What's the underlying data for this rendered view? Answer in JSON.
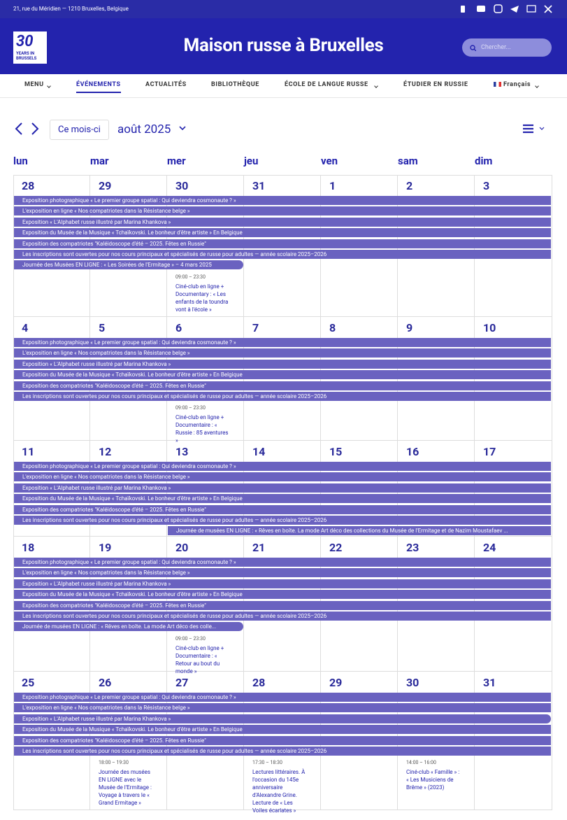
{
  "topbar": {
    "address": "21, rue du Méridien — 1210 Bruxelles, Belgique"
  },
  "header": {
    "logo": {
      "number": "30",
      "text": "YEARS IN BRUSSELS"
    },
    "title": "Maison russe à Bruxelles",
    "search_placeholder": "Chercher..."
  },
  "nav": {
    "items": [
      "MENU",
      "ÉVÉNEMENTS",
      "ACTUALITÉS",
      "BIBLIOTHÈQUE",
      "ÉCOLE DE LANGUE RUSSE",
      "ÉTUDIER EN RUSSIE",
      "Français"
    ]
  },
  "calendar": {
    "today_button": "Ce mois-ci",
    "month": "août 2025",
    "weekdays": [
      "lun",
      "mar",
      "mer",
      "jeu",
      "ven",
      "sam",
      "dim"
    ],
    "ongoing": [
      "Exposition photographique « Le premier groupe spatial : Qui deviendra cosmonaute ? »",
      "L'exposition en ligne « Nos compatriotes dans la Résistance belge »",
      "Exposition « L'Alphabet russe illustré par Marina Khankova »",
      "Exposition du Musée de la Musique « Tchaïkovski. Le bonheur d'être artiste » En Belgique",
      "Exposition des compatriotes \"Kaléidoscope d'été – 2025. Fêtes en Russie\"",
      "Les inscriptions sont ouvertes pour nos cours principaux et spécialisés de russe pour adultes — année scolaire 2025–2026"
    ],
    "weeks": [
      {
        "days": [
          {
            "number": 28
          },
          {
            "number": 29
          },
          {
            "number": 30,
            "events": [
              {
                "time": "09:00 – 23:30",
                "title": "Ciné-club en ligne + Documentary : « Les enfants de la toundra vont à l'école »"
              }
            ]
          },
          {
            "number": 31
          },
          {
            "number": 1
          },
          {
            "number": 2
          },
          {
            "number": 3
          }
        ],
        "bars": [
          "Journée des Musées EN LIGNE : « Les Soirées de l'Ermitage » – 4 mars 2025"
        ]
      },
      {
        "days": [
          {
            "number": 4
          },
          {
            "number": 5
          },
          {
            "number": 6,
            "events": [
              {
                "time": "09:00 – 23:30",
                "title": "Ciné-club en ligne + Documentaire : « Russie : 85 aventures »"
              }
            ]
          },
          {
            "number": 7
          },
          {
            "number": 8
          },
          {
            "number": 9
          },
          {
            "number": 10
          }
        ]
      },
      {
        "days": [
          {
            "number": 11
          },
          {
            "number": 12
          },
          {
            "number": 13
          },
          {
            "number": 14
          },
          {
            "number": 15
          },
          {
            "number": 16
          },
          {
            "number": 17
          }
        ],
        "bars": [
          "Journée de musées EN LIGNE : « Rêves en boîte. La mode Art déco des collections du Musée de l'Ermitage et de Nazim Moustafaev ..."
        ]
      },
      {
        "days": [
          {
            "number": 18
          },
          {
            "number": 19
          },
          {
            "number": 20,
            "events": [
              {
                "time": "09:00 – 23:30",
                "title": "Ciné-club en ligne + Documentaire : « Retour au bout du monde »"
              }
            ]
          },
          {
            "number": 21
          },
          {
            "number": 22
          },
          {
            "number": 23
          },
          {
            "number": 24
          }
        ],
        "bars": [
          "Journée de musées EN LIGNE : « Rêves en boîte. La mode Art déco des colle..."
        ]
      },
      {
        "days": [
          {
            "number": 25
          },
          {
            "number": 26,
            "events": [
              {
                "time": "18:00 – 19:30",
                "title": "Journée des musées EN LIGNE avec le Musée de l'Ermitage : Voyage à travers le « Grand Ermitage »"
              }
            ]
          },
          {
            "number": 27
          },
          {
            "number": 28,
            "events": [
              {
                "time": "17:30 – 18:30",
                "title": "Lectures littéraires. À l'occasion du 145e anniversaire d'Alexandre Grine. Lecture de « Les Voiles écarlates »"
              }
            ]
          },
          {
            "number": 29
          },
          {
            "number": 30,
            "events": [
              {
                "time": "14:00 – 16:00",
                "title": "Ciné-club « Famille » : « Les Musiciens de Brême » (2023)"
              }
            ]
          },
          {
            "number": 31
          }
        ]
      }
    ]
  }
}
